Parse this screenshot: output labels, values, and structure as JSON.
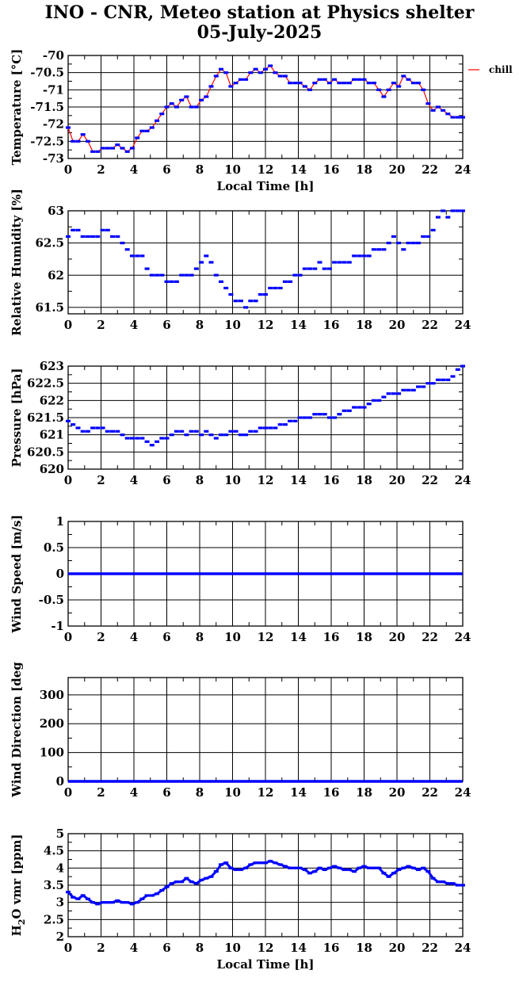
{
  "title_line1": "INO - CNR, Meteo station at Physics shelter",
  "title_line2": "05-July-2025",
  "legend_label": "chill",
  "colors": {
    "series": "#0000ff",
    "chill": "#ff0000",
    "grid": "#000000"
  },
  "chart_data": [
    {
      "type": "scatter",
      "ylabel": "Temperature [°C]",
      "xlabel": "Local Time [h]",
      "xlim": [
        0,
        24
      ],
      "xticks": [
        0,
        2,
        4,
        6,
        8,
        10,
        12,
        14,
        16,
        18,
        20,
        22,
        24
      ],
      "ylim": [
        -73,
        -70
      ],
      "yticks": [
        -73,
        -72.5,
        -72,
        -71.5,
        -71,
        -70.5,
        -70
      ],
      "ytick_labels": [
        "-73",
        "-72.5",
        "-72",
        "-71.5",
        "-71",
        "-70.5",
        "-70"
      ],
      "grid": true,
      "legend": "right",
      "series": [
        {
          "x": [
            0,
            0.3,
            0.6,
            0.9,
            1.2,
            1.5,
            1.8,
            2.1,
            2.4,
            2.7,
            3.0,
            3.3,
            3.6,
            3.9,
            4.2,
            4.5,
            4.8,
            5.1,
            5.4,
            5.7,
            6.0,
            6.3,
            6.6,
            6.9,
            7.2,
            7.5,
            7.8,
            8.1,
            8.4,
            8.7,
            9.0,
            9.3,
            9.6,
            9.9,
            10.2,
            10.5,
            10.8,
            11.1,
            11.4,
            11.7,
            12.0,
            12.3,
            12.6,
            12.9,
            13.2,
            13.5,
            13.8,
            14.1,
            14.4,
            14.7,
            15.0,
            15.3,
            15.6,
            15.9,
            16.2,
            16.5,
            16.8,
            17.1,
            17.4,
            17.7,
            18.0,
            18.3,
            18.6,
            18.9,
            19.2,
            19.5,
            19.8,
            20.1,
            20.4,
            20.7,
            21.0,
            21.3,
            21.6,
            21.9,
            22.2,
            22.5,
            22.8,
            23.1,
            23.4,
            23.7,
            24.0
          ],
          "y": [
            -72.1,
            -72.5,
            -72.5,
            -72.3,
            -72.5,
            -72.8,
            -72.8,
            -72.7,
            -72.7,
            -72.7,
            -72.6,
            -72.7,
            -72.8,
            -72.7,
            -72.4,
            -72.2,
            -72.2,
            -72.1,
            -71.9,
            -71.7,
            -71.5,
            -71.4,
            -71.5,
            -71.3,
            -71.2,
            -71.5,
            -71.5,
            -71.3,
            -71.2,
            -70.9,
            -70.6,
            -70.4,
            -70.5,
            -70.9,
            -70.8,
            -70.7,
            -70.7,
            -70.5,
            -70.4,
            -70.5,
            -70.4,
            -70.3,
            -70.5,
            -70.6,
            -70.6,
            -70.8,
            -70.8,
            -70.8,
            -70.9,
            -71.0,
            -70.8,
            -70.7,
            -70.7,
            -70.8,
            -70.7,
            -70.8,
            -70.8,
            -70.8,
            -70.7,
            -70.7,
            -70.7,
            -70.8,
            -70.8,
            -71.0,
            -71.2,
            -71.0,
            -70.8,
            -70.9,
            -70.6,
            -70.7,
            -70.8,
            -70.8,
            -71.0,
            -71.4,
            -71.6,
            -71.5,
            -71.6,
            -71.7,
            -71.8,
            -71.8,
            -71.8
          ]
        }
      ]
    },
    {
      "type": "scatter",
      "ylabel": "Relative Humidity [%]",
      "xlim": [
        0,
        24
      ],
      "xticks": [
        0,
        2,
        4,
        6,
        8,
        10,
        12,
        14,
        16,
        18,
        20,
        22,
        24
      ],
      "ylim": [
        61.4,
        63
      ],
      "yticks": [
        61.5,
        62,
        62.5,
        63
      ],
      "ytick_labels": [
        "61.5",
        "62",
        "62.5",
        "63"
      ],
      "grid": true,
      "series": [
        {
          "x": [
            0,
            0.3,
            0.6,
            0.9,
            1.2,
            1.5,
            1.8,
            2.1,
            2.4,
            2.7,
            3.0,
            3.3,
            3.6,
            3.9,
            4.2,
            4.5,
            4.8,
            5.1,
            5.4,
            5.7,
            6.0,
            6.3,
            6.6,
            6.9,
            7.2,
            7.5,
            7.8,
            8.1,
            8.4,
            8.7,
            9.0,
            9.3,
            9.6,
            9.9,
            10.2,
            10.5,
            10.8,
            11.1,
            11.4,
            11.7,
            12.0,
            12.3,
            12.6,
            12.9,
            13.2,
            13.5,
            13.8,
            14.1,
            14.4,
            14.7,
            15.0,
            15.3,
            15.6,
            15.9,
            16.2,
            16.5,
            16.8,
            17.1,
            17.4,
            17.7,
            18.0,
            18.3,
            18.6,
            18.9,
            19.2,
            19.5,
            19.8,
            20.1,
            20.4,
            20.7,
            21.0,
            21.3,
            21.6,
            21.9,
            22.2,
            22.5,
            22.8,
            23.1,
            23.4,
            23.7,
            24.0
          ],
          "y": [
            62.6,
            62.7,
            62.7,
            62.6,
            62.6,
            62.6,
            62.6,
            62.7,
            62.7,
            62.6,
            62.6,
            62.5,
            62.4,
            62.3,
            62.3,
            62.3,
            62.1,
            62.0,
            62.0,
            62.0,
            61.9,
            61.9,
            61.9,
            62.0,
            62.0,
            62.0,
            62.1,
            62.2,
            62.3,
            62.2,
            62.0,
            61.9,
            61.8,
            61.7,
            61.6,
            61.6,
            61.5,
            61.6,
            61.6,
            61.7,
            61.7,
            61.8,
            61.8,
            61.8,
            61.9,
            61.9,
            62.0,
            62.0,
            62.1,
            62.1,
            62.1,
            62.2,
            62.1,
            62.1,
            62.2,
            62.2,
            62.2,
            62.2,
            62.3,
            62.3,
            62.3,
            62.3,
            62.4,
            62.4,
            62.4,
            62.5,
            62.6,
            62.5,
            62.4,
            62.5,
            62.5,
            62.5,
            62.6,
            62.6,
            62.7,
            62.9,
            63.0,
            62.9,
            63.0,
            63.0,
            63.0
          ]
        }
      ]
    },
    {
      "type": "scatter",
      "ylabel": "Pressure [hPa]",
      "xlim": [
        0,
        24
      ],
      "xticks": [
        0,
        2,
        4,
        6,
        8,
        10,
        12,
        14,
        16,
        18,
        20,
        22,
        24
      ],
      "ylim": [
        620,
        623
      ],
      "yticks": [
        620,
        620.5,
        621,
        621.5,
        622,
        622.5,
        623
      ],
      "ytick_labels": [
        "620",
        "620.5",
        "621",
        "621.5",
        "622",
        "622.5",
        "623"
      ],
      "grid": true,
      "series": [
        {
          "x": [
            0,
            0.3,
            0.6,
            0.9,
            1.2,
            1.5,
            1.8,
            2.1,
            2.4,
            2.7,
            3.0,
            3.3,
            3.6,
            3.9,
            4.2,
            4.5,
            4.8,
            5.1,
            5.4,
            5.7,
            6.0,
            6.3,
            6.6,
            6.9,
            7.2,
            7.5,
            7.8,
            8.1,
            8.4,
            8.7,
            9.0,
            9.3,
            9.6,
            9.9,
            10.2,
            10.5,
            10.8,
            11.1,
            11.4,
            11.7,
            12.0,
            12.3,
            12.6,
            12.9,
            13.2,
            13.5,
            13.8,
            14.1,
            14.4,
            14.7,
            15.0,
            15.3,
            15.6,
            15.9,
            16.2,
            16.5,
            16.8,
            17.1,
            17.4,
            17.7,
            18.0,
            18.3,
            18.6,
            18.9,
            19.2,
            19.5,
            19.8,
            20.1,
            20.4,
            20.7,
            21.0,
            21.3,
            21.6,
            21.9,
            22.2,
            22.5,
            22.8,
            23.1,
            23.4,
            23.7,
            24.0
          ],
          "y": [
            621.4,
            621.3,
            621.2,
            621.1,
            621.1,
            621.2,
            621.2,
            621.2,
            621.1,
            621.1,
            621.1,
            621.0,
            620.9,
            620.9,
            620.9,
            620.9,
            620.8,
            620.7,
            620.8,
            620.9,
            620.9,
            621.0,
            621.1,
            621.1,
            621.0,
            621.1,
            621.1,
            621.0,
            621.1,
            621.0,
            620.9,
            621.0,
            621.0,
            621.1,
            621.1,
            621.0,
            621.0,
            621.1,
            621.1,
            621.2,
            621.2,
            621.2,
            621.2,
            621.3,
            621.3,
            621.4,
            621.4,
            621.5,
            621.5,
            621.5,
            621.6,
            621.6,
            621.6,
            621.5,
            621.5,
            621.6,
            621.7,
            621.7,
            621.8,
            621.8,
            621.8,
            621.9,
            622.0,
            622.0,
            622.1,
            622.2,
            622.2,
            622.2,
            622.3,
            622.3,
            622.3,
            622.4,
            622.4,
            622.5,
            622.5,
            622.6,
            622.6,
            622.6,
            622.7,
            622.9,
            623.0
          ]
        }
      ]
    },
    {
      "type": "scatter",
      "ylabel": "Wind Speed [m/s]",
      "xlim": [
        0,
        24
      ],
      "xticks": [
        0,
        2,
        4,
        6,
        8,
        10,
        12,
        14,
        16,
        18,
        20,
        22,
        24
      ],
      "ylim": [
        -1,
        1
      ],
      "yticks": [
        -1,
        -0.5,
        0,
        0.5,
        1
      ],
      "ytick_labels": [
        "-1",
        "-0.5",
        "0",
        "0.5",
        "1"
      ],
      "grid": true,
      "series": [
        {
          "x": [
            0,
            2,
            4,
            6,
            8,
            10,
            12,
            14,
            16,
            18,
            20,
            22,
            24
          ],
          "y": [
            0,
            0,
            0,
            0,
            0,
            0,
            0,
            0,
            0,
            0,
            0,
            0,
            0
          ]
        }
      ]
    },
    {
      "type": "scatter",
      "ylabel": "Wind Direction [deg",
      "xlim": [
        0,
        24
      ],
      "xticks": [
        0,
        2,
        4,
        6,
        8,
        10,
        12,
        14,
        16,
        18,
        20,
        22,
        24
      ],
      "ylim": [
        0,
        360
      ],
      "yticks": [
        0,
        100,
        200,
        300
      ],
      "ytick_labels": [
        "0",
        "100",
        "200",
        "300"
      ],
      "grid": true,
      "series": [
        {
          "x": [
            0,
            2,
            4,
            6,
            8,
            10,
            12,
            14,
            16,
            18,
            20,
            22,
            24
          ],
          "y": [
            0,
            0,
            0,
            0,
            0,
            0,
            0,
            0,
            0,
            0,
            0,
            0,
            0
          ]
        }
      ]
    },
    {
      "type": "scatter",
      "ylabel_main": "H",
      "ylabel_sub": "2",
      "ylabel_rest": "O vmr [ppm]",
      "xlabel": "Local Time [h]",
      "xlim": [
        0,
        24
      ],
      "xticks": [
        0,
        2,
        4,
        6,
        8,
        10,
        12,
        14,
        16,
        18,
        20,
        22,
        24
      ],
      "ylim": [
        2,
        5
      ],
      "yticks": [
        2,
        2.5,
        3,
        3.5,
        4,
        4.5,
        5
      ],
      "ytick_labels": [
        "2",
        "2.5",
        "3",
        "3.5",
        "4",
        "4.5",
        "5"
      ],
      "grid": true,
      "series": [
        {
          "x": [
            0,
            0.3,
            0.6,
            0.9,
            1.2,
            1.5,
            1.8,
            2.1,
            2.4,
            2.7,
            3.0,
            3.3,
            3.6,
            3.9,
            4.2,
            4.5,
            4.8,
            5.1,
            5.4,
            5.7,
            6.0,
            6.3,
            6.6,
            6.9,
            7.2,
            7.5,
            7.8,
            8.1,
            8.4,
            8.7,
            9.0,
            9.3,
            9.6,
            9.9,
            10.2,
            10.5,
            10.8,
            11.1,
            11.4,
            11.7,
            12.0,
            12.3,
            12.6,
            12.9,
            13.2,
            13.5,
            13.8,
            14.1,
            14.4,
            14.7,
            15.0,
            15.3,
            15.6,
            15.9,
            16.2,
            16.5,
            16.8,
            17.1,
            17.4,
            17.7,
            18.0,
            18.3,
            18.6,
            18.9,
            19.2,
            19.5,
            19.8,
            20.1,
            20.4,
            20.7,
            21.0,
            21.3,
            21.6,
            21.9,
            22.2,
            22.5,
            22.8,
            23.1,
            23.4,
            23.7,
            24.0
          ],
          "y": [
            3.3,
            3.15,
            3.1,
            3.2,
            3.1,
            3.0,
            2.95,
            3.0,
            3.0,
            3.0,
            3.05,
            3.0,
            3.0,
            2.95,
            3.0,
            3.1,
            3.2,
            3.2,
            3.25,
            3.35,
            3.45,
            3.55,
            3.6,
            3.6,
            3.7,
            3.6,
            3.55,
            3.65,
            3.7,
            3.75,
            3.9,
            4.1,
            4.15,
            4.0,
            3.95,
            3.95,
            4.0,
            4.1,
            4.15,
            4.15,
            4.15,
            4.2,
            4.15,
            4.1,
            4.05,
            4.0,
            4.0,
            4.0,
            3.95,
            3.85,
            3.9,
            4.0,
            3.95,
            4.0,
            4.05,
            4.0,
            3.95,
            3.95,
            3.9,
            4.0,
            4.05,
            4.0,
            4.0,
            4.0,
            3.85,
            3.75,
            3.85,
            3.95,
            4.0,
            4.05,
            4.0,
            3.95,
            4.0,
            3.9,
            3.7,
            3.6,
            3.6,
            3.55,
            3.55,
            3.5,
            3.5
          ]
        }
      ]
    }
  ]
}
